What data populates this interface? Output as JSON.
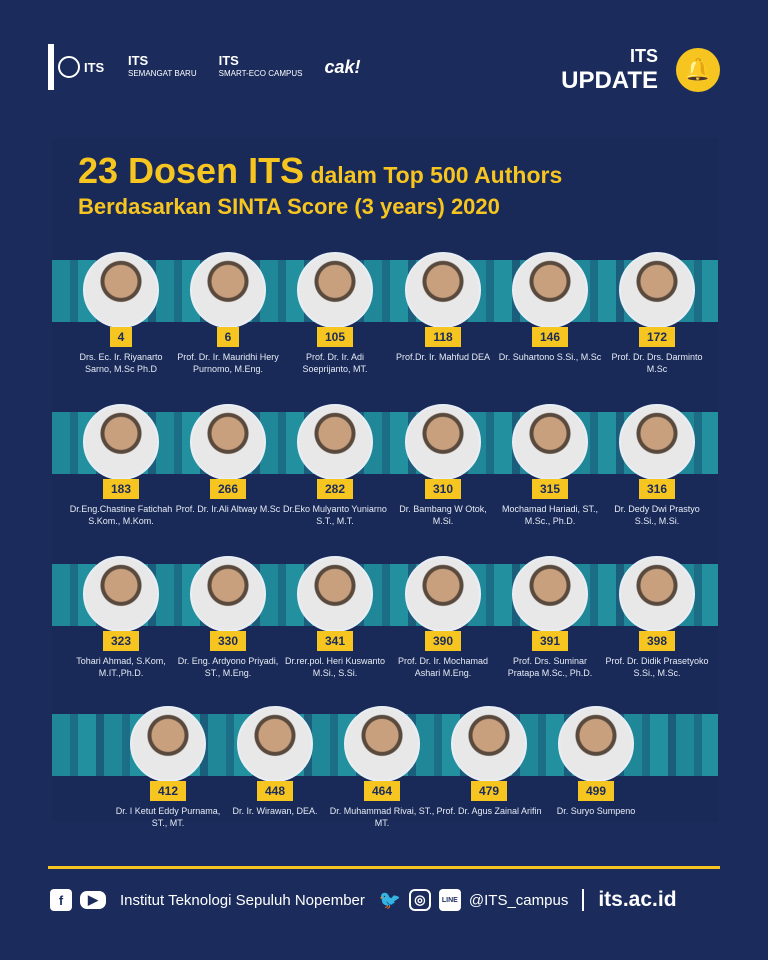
{
  "header": {
    "logos": [
      "ITS Institut Teknologi Sepuluh Nopember",
      "ITS SEMANGAT BARU",
      "ITS SMART-ECO CAMPUS",
      "Arek ITS Cak!"
    ],
    "update_top": "ITS",
    "update_bottom": "UPDATE",
    "bell_icon": "bell-icon"
  },
  "title": {
    "big": "23 Dosen ITS",
    "rest": " dalam Top 500 Authors",
    "line2": "Berdasarkan SINTA Score (3 years) 2020"
  },
  "rows": [
    [
      {
        "rank": "4",
        "name": "Drs. Ec. Ir. Riyanarto Sarno, M.Sc Ph.D"
      },
      {
        "rank": "6",
        "name": "Prof. Dr. Ir. Mauridhi Hery Purnomo, M.Eng."
      },
      {
        "rank": "105",
        "name": "Prof. Dr. Ir. Adi Soeprijanto, MT."
      },
      {
        "rank": "118",
        "name": "Prof.Dr. Ir. Mahfud DEA"
      },
      {
        "rank": "146",
        "name": "Dr. Suhartono S.Si., M.Sc"
      },
      {
        "rank": "172",
        "name": "Prof. Dr. Drs. Darminto M.Sc"
      }
    ],
    [
      {
        "rank": "183",
        "name": "Dr.Eng.Chastine Fatichah S.Kom., M.Kom."
      },
      {
        "rank": "266",
        "name": "Prof. Dr. Ir.Ali Altway M.Sc"
      },
      {
        "rank": "282",
        "name": "Dr.Eko Mulyanto Yuniarno S.T., M.T."
      },
      {
        "rank": "310",
        "name": "Dr. Bambang W Otok, M.Si."
      },
      {
        "rank": "315",
        "name": "Mochamad Hariadi, ST., M.Sc., Ph.D."
      },
      {
        "rank": "316",
        "name": "Dr. Dedy Dwi Prastyo S.Si., M.Si."
      }
    ],
    [
      {
        "rank": "323",
        "name": "Tohari Ahmad, S.Kom, M.IT.,Ph.D."
      },
      {
        "rank": "330",
        "name": "Dr. Eng. Ardyono Priyadi, ST., M.Eng."
      },
      {
        "rank": "341",
        "name": "Dr.rer.pol. Heri Kuswanto M.Si., S.Si."
      },
      {
        "rank": "390",
        "name": "Prof. Dr. Ir. Mochamad Ashari M.Eng."
      },
      {
        "rank": "391",
        "name": "Prof. Drs. Suminar Pratapa M.Sc., Ph.D."
      },
      {
        "rank": "398",
        "name": "Prof. Dr. Didik Prasetyoko S.Si., M.Sc."
      }
    ],
    [
      {
        "rank": "412",
        "name": "Dr. I Ketut Eddy Purnama, ST., MT."
      },
      {
        "rank": "448",
        "name": "Dr. Ir. Wirawan, DEA."
      },
      {
        "rank": "464",
        "name": "Dr. Muhammad Rivai, ST., MT."
      },
      {
        "rank": "479",
        "name": "Prof. Dr. Agus Zainal Arifin"
      },
      {
        "rank": "499",
        "name": "Dr. Suryo Sumpeno"
      }
    ]
  ],
  "footer": {
    "institution": "Institut Teknologi Sepuluh Nopember",
    "handle": "@ITS_campus",
    "website": "its.ac.id",
    "icons": [
      "facebook-icon",
      "youtube-icon",
      "twitter-icon",
      "instagram-icon",
      "line-icon"
    ]
  },
  "colors": {
    "background": "#1b2c5c",
    "accent": "#f7c520",
    "band": "#1f8797"
  }
}
